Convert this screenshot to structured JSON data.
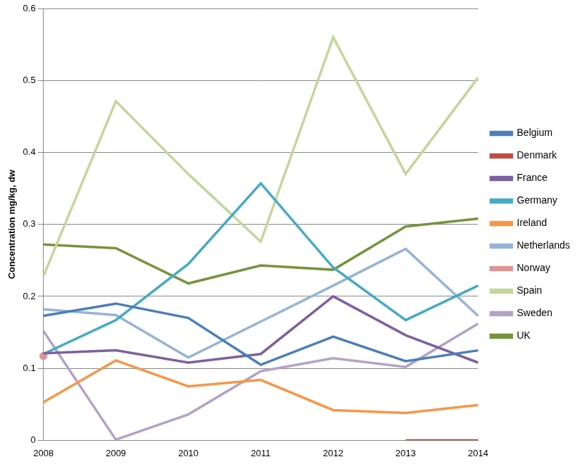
{
  "chart_data": {
    "type": "line",
    "y_label": "Concentration mg/kg, dw",
    "categories": [
      "2008",
      "2009",
      "2010",
      "2011",
      "2012",
      "2013",
      "2014"
    ],
    "series": [
      {
        "name": "Belgium",
        "color": "#4a7ebb",
        "marker": "none",
        "values": [
          0.173,
          0.19,
          0.17,
          0.105,
          0.144,
          0.11,
          0.125
        ]
      },
      {
        "name": "Denmark",
        "color": "#be4b48",
        "marker": "none",
        "values": [
          null,
          null,
          null,
          null,
          null,
          0,
          0
        ]
      },
      {
        "name": "France",
        "color": "#7d60a0",
        "marker": "none",
        "values": [
          0.121,
          0.125,
          0.108,
          0.12,
          0.2,
          0.146,
          0.108
        ]
      },
      {
        "name": "Germany",
        "color": "#46aac5",
        "marker": "none",
        "values": [
          0.12,
          0.167,
          0.245,
          0.357,
          0.24,
          0.167,
          0.215
        ]
      },
      {
        "name": "Ireland",
        "color": "#f79646",
        "marker": "none",
        "values": [
          0.053,
          0.111,
          0.075,
          0.084,
          0.042,
          0.038,
          0.049
        ]
      },
      {
        "name": "Netherlands",
        "color": "#95b3d7",
        "marker": "none",
        "values": [
          0.182,
          0.174,
          0.115,
          0.165,
          0.215,
          0.266,
          0.173
        ]
      },
      {
        "name": "Norway",
        "color": "#d99694",
        "marker": "circle",
        "values": [
          0.117,
          null,
          null,
          null,
          null,
          null,
          null
        ]
      },
      {
        "name": "Spain",
        "color": "#c3d69b",
        "marker": "none",
        "values": [
          0.228,
          0.471,
          0.37,
          0.276,
          0.56,
          0.37,
          0.504
        ]
      },
      {
        "name": "Sweden",
        "color": "#b3a2c7",
        "marker": "none",
        "values": [
          0.152,
          0.001,
          0.036,
          0.096,
          0.114,
          0.102,
          0.162
        ]
      },
      {
        "name": "UK",
        "color": "#77933c",
        "marker": "none",
        "values": [
          0.272,
          0.267,
          0.218,
          0.243,
          0.237,
          0.297,
          0.308
        ]
      }
    ],
    "ylim": [
      0,
      0.6
    ],
    "yticks": [
      0,
      0.1,
      0.2,
      0.3,
      0.4,
      0.5,
      0.6
    ],
    "grid": true,
    "legend": "right"
  }
}
